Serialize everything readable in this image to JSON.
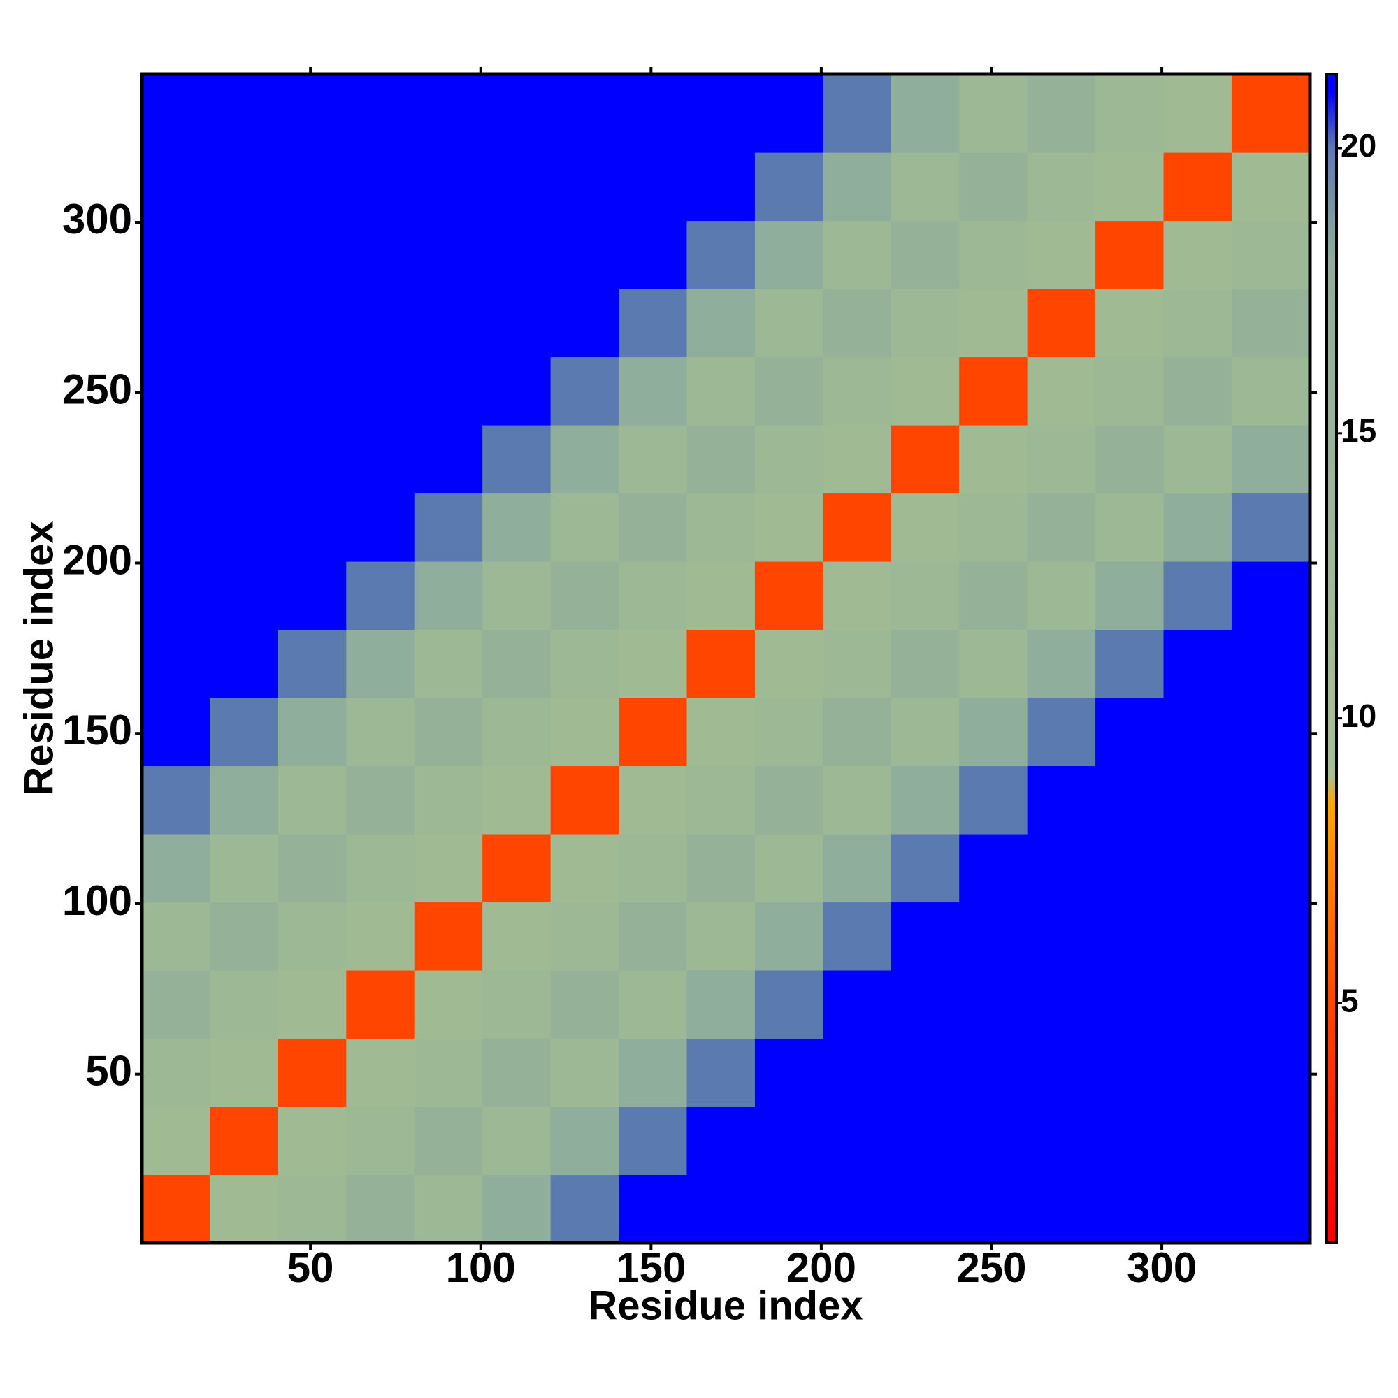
{
  "chart_data": {
    "type": "heatmap",
    "x_label": "Residue index",
    "y_label": "Residue index",
    "xbins": [
      0.5,
      20.5,
      40.5,
      60.5,
      80.5,
      100.5,
      120.5,
      140.5,
      160.5,
      180.5,
      200.5,
      220.5,
      240.5,
      260.5,
      280.5,
      300.5,
      320.5,
      343.5
    ],
    "ybins": [
      0.5,
      20.5,
      40.5,
      60.5,
      80.5,
      100.5,
      120.5,
      140.5,
      160.5,
      180.5,
      200.5,
      220.5,
      240.5,
      260.5,
      280.5,
      300.5,
      320.5,
      343.5
    ],
    "xlim": [
      0.5,
      343.5
    ],
    "ylim": [
      0.5,
      343.5
    ],
    "xticks": [
      50,
      100,
      150,
      200,
      250,
      300
    ],
    "yticks": [
      50,
      100,
      150,
      200,
      250,
      300
    ],
    "clim": [
      0.8,
      21.3
    ],
    "cticks": [
      5,
      10,
      15,
      20
    ],
    "colorscale": [
      {
        "value": 1,
        "color": "#ff0000"
      },
      {
        "value": 5,
        "color": "#ff4500"
      },
      {
        "value": 8.5,
        "color": "#ffa500"
      },
      {
        "value": 9,
        "color": "#a8c090"
      },
      {
        "value": 18,
        "color": "#8fae9c"
      },
      {
        "value": 20,
        "color": "#5b7bb0"
      },
      {
        "value": 21,
        "color": "#0000ff"
      }
    ],
    "values": [
      [
        5,
        12,
        13,
        16,
        13,
        18,
        20,
        21,
        21,
        21,
        21,
        21,
        21,
        21,
        21,
        21,
        21
      ],
      [
        12,
        5,
        12,
        13,
        16,
        13,
        18,
        20,
        21,
        21,
        21,
        21,
        21,
        21,
        21,
        21,
        21
      ],
      [
        13,
        12,
        5,
        12,
        13,
        16,
        13,
        18,
        20,
        21,
        21,
        21,
        21,
        21,
        21,
        21,
        21
      ],
      [
        16,
        13,
        12,
        5,
        12,
        13,
        16,
        13,
        18,
        20,
        21,
        21,
        21,
        21,
        21,
        21,
        21
      ],
      [
        13,
        16,
        13,
        12,
        5,
        12,
        13,
        16,
        13,
        18,
        20,
        21,
        21,
        21,
        21,
        21,
        21
      ],
      [
        18,
        13,
        16,
        13,
        12,
        5,
        12,
        13,
        16,
        13,
        18,
        20,
        21,
        21,
        21,
        21,
        21
      ],
      [
        20,
        18,
        13,
        16,
        13,
        12,
        5,
        12,
        13,
        16,
        13,
        18,
        20,
        21,
        21,
        21,
        21
      ],
      [
        21,
        20,
        18,
        13,
        16,
        13,
        12,
        5,
        12,
        13,
        16,
        13,
        18,
        20,
        21,
        21,
        21
      ],
      [
        21,
        21,
        20,
        18,
        13,
        16,
        13,
        12,
        5,
        12,
        13,
        16,
        13,
        18,
        20,
        21,
        21
      ],
      [
        21,
        21,
        21,
        20,
        18,
        13,
        16,
        13,
        12,
        5,
        12,
        13,
        16,
        13,
        18,
        20,
        21
      ],
      [
        21,
        21,
        21,
        21,
        20,
        18,
        13,
        16,
        13,
        12,
        5,
        12,
        13,
        16,
        13,
        18,
        20
      ],
      [
        21,
        21,
        21,
        21,
        21,
        20,
        18,
        13,
        16,
        13,
        12,
        5,
        12,
        13,
        16,
        13,
        18
      ],
      [
        21,
        21,
        21,
        21,
        21,
        21,
        20,
        18,
        13,
        16,
        13,
        12,
        5,
        12,
        13,
        16,
        13
      ],
      [
        21,
        21,
        21,
        21,
        21,
        21,
        21,
        20,
        18,
        13,
        16,
        13,
        12,
        5,
        12,
        13,
        16
      ],
      [
        21,
        21,
        21,
        21,
        21,
        21,
        21,
        21,
        20,
        18,
        13,
        16,
        13,
        12,
        5,
        12,
        13
      ],
      [
        21,
        21,
        21,
        21,
        21,
        21,
        21,
        21,
        21,
        20,
        18,
        13,
        16,
        13,
        12,
        5,
        12
      ],
      [
        21,
        21,
        21,
        21,
        21,
        21,
        21,
        21,
        21,
        21,
        20,
        18,
        13,
        16,
        13,
        12,
        5
      ]
    ]
  }
}
